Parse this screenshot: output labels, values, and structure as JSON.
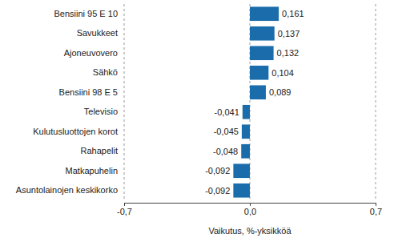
{
  "chart_data": {
    "type": "bar",
    "orientation": "horizontal",
    "x_label": "Vaikutus, %-yksikköä",
    "categories": [
      "Bensiini 95 E 10",
      "Savukkeet",
      "Ajoneuvovero",
      "Sähkö",
      "Bensiini 98 E 5",
      "Televisio",
      "Kulutusluottojen korot",
      "Rahapelit",
      "Matkapuhelin",
      "Asuntolainojen keskikorko"
    ],
    "values": [
      0.161,
      0.137,
      0.132,
      0.104,
      0.089,
      -0.041,
      -0.045,
      -0.048,
      -0.092,
      -0.092
    ],
    "value_labels": [
      "0,161",
      "0,137",
      "0,132",
      "0,104",
      "0,089",
      "-0,041",
      "-0,045",
      "-0,048",
      "-0,092",
      "-0,092"
    ],
    "data_labels": true,
    "color": "#1b6cab",
    "xlim": [
      -0.7,
      0.7
    ],
    "xticks": [
      {
        "value": -0.7,
        "label": "-0,7"
      },
      {
        "value": 0,
        "label": "0,0"
      },
      {
        "value": 0.7,
        "label": "0,7"
      }
    ],
    "grid": true
  }
}
